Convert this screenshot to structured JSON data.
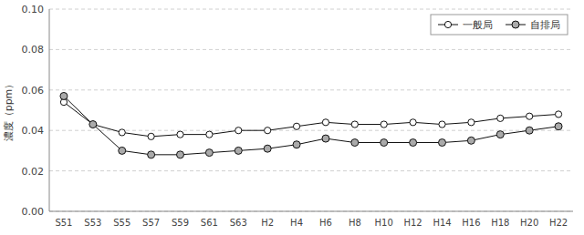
{
  "chart_data": {
    "type": "line",
    "categories": [
      "S51",
      "S53",
      "S55",
      "S57",
      "S59",
      "S61",
      "S63",
      "H2",
      "H4",
      "H6",
      "H8",
      "H10",
      "H12",
      "H14",
      "H16",
      "H18",
      "H20",
      "H22"
    ],
    "color": "#111111",
    "series": [
      {
        "name": "一般局",
        "color": "#ffffff",
        "marker": "circle",
        "values": [
          0.054,
          0.043,
          0.039,
          0.037,
          0.038,
          0.038,
          0.04,
          0.04,
          0.042,
          0.044,
          0.043,
          0.043,
          0.044,
          0.043,
          0.044,
          0.046,
          0.047,
          0.048
        ]
      },
      {
        "name": "自排局",
        "color": "#aaaaaa",
        "marker": "circle",
        "values": [
          0.057,
          0.043,
          0.03,
          0.028,
          0.028,
          0.029,
          0.03,
          0.031,
          0.033,
          0.036,
          0.034,
          0.034,
          0.034,
          0.034,
          0.035,
          0.038,
          0.04,
          0.042
        ]
      }
    ],
    "ylabel": "濃度（ppm）",
    "ylim": [
      0.0,
      0.1
    ],
    "yticks": [
      {
        "value": 0,
        "label": "0.00"
      },
      0.02,
      0.04,
      0.06,
      0.08,
      {
        "value": 0.1,
        "label": "0.10"
      }
    ],
    "grid": true,
    "legend": "upper right"
  }
}
